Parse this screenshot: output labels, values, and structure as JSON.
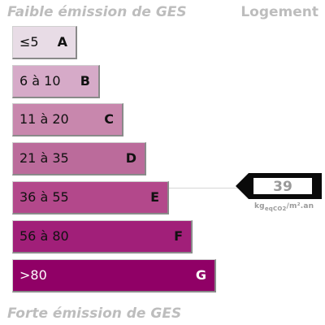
{
  "header": {
    "top_label": "Faible émission de GES",
    "category": "Logement"
  },
  "footer": {
    "bottom_label": "Forte émission de GES"
  },
  "classes": [
    {
      "range": "≤5",
      "letter": "A",
      "color": "#e8dce6",
      "text_color": "#111111"
    },
    {
      "range": "6 à 10",
      "letter": "B",
      "color": "#d6aac8",
      "text_color": "#111111"
    },
    {
      "range": "11 à 20",
      "letter": "C",
      "color": "#c887ad",
      "text_color": "#111111"
    },
    {
      "range": "21 à 35",
      "letter": "D",
      "color": "#bb6b9b",
      "text_color": "#111111"
    },
    {
      "range": "36 à 55",
      "letter": "E",
      "color": "#b3488b",
      "text_color": "#111111"
    },
    {
      "range": "56 à 80",
      "letter": "F",
      "color": "#a11f79",
      "text_color": "#111111"
    },
    {
      "range": ">80",
      "letter": "G",
      "color": "#900066",
      "text_color": "#ffffff"
    }
  ],
  "indicator": {
    "value": "39",
    "unit_prefix": "kg",
    "unit_sub": "eqCO2",
    "unit_suffix": "/m².an",
    "class_letter": "E"
  }
}
